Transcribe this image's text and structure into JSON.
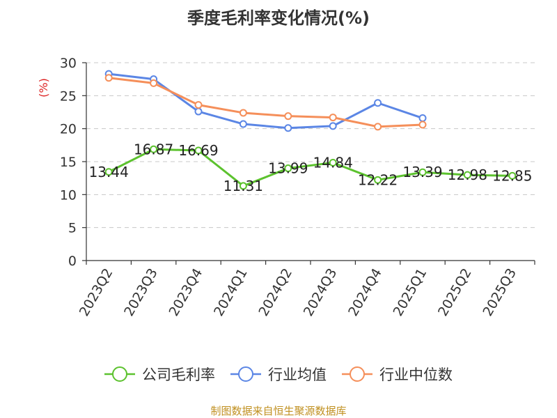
{
  "title": "季度毛利率变化情况(%)",
  "source_note": "制图数据来自恒生聚源数据库",
  "chart_data": {
    "type": "line",
    "title": "季度毛利率变化情况(%)",
    "ylabel": "(%)",
    "xlabel": "",
    "ylim": [
      0,
      30
    ],
    "yticks": [
      0,
      5,
      10,
      15,
      20,
      25,
      30
    ],
    "grid": true,
    "legend_position": "bottom",
    "categories": [
      "2023Q2",
      "2023Q3",
      "2023Q4",
      "2024Q1",
      "2024Q2",
      "2024Q3",
      "2024Q4",
      "2025Q1",
      "2025Q2",
      "2025Q3"
    ],
    "series": [
      {
        "name": "公司毛利率",
        "color": "#5cc22e",
        "show_labels": true,
        "values": [
          13.44,
          16.87,
          16.69,
          11.31,
          13.99,
          14.84,
          12.22,
          13.39,
          12.98,
          12.85
        ]
      },
      {
        "name": "行业均值",
        "color": "#5b86e5",
        "show_labels": false,
        "values": [
          28.3,
          27.5,
          22.6,
          20.7,
          20.1,
          20.4,
          23.9,
          21.6,
          null,
          null
        ]
      },
      {
        "name": "行业中位数",
        "color": "#f58f5a",
        "show_labels": false,
        "values": [
          27.7,
          26.9,
          23.6,
          22.4,
          21.9,
          21.7,
          20.3,
          20.6,
          null,
          null
        ]
      }
    ]
  }
}
